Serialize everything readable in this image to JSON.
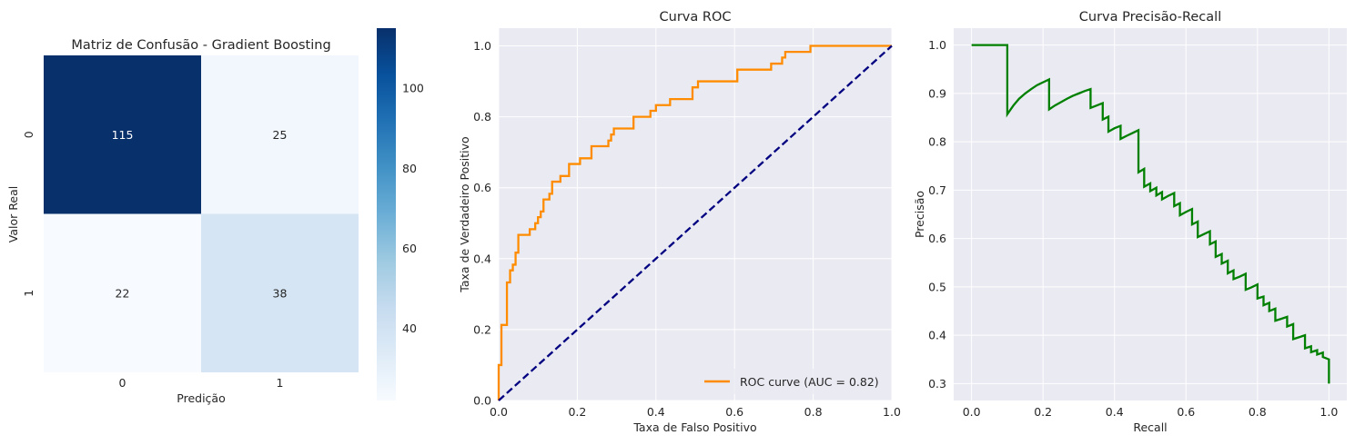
{
  "chart_data": [
    {
      "type": "heatmap",
      "title": "Matriz de Confusão - Gradient Boosting",
      "xlabel": "Predição",
      "ylabel": "Valor Real",
      "x_categories": [
        "0",
        "1"
      ],
      "y_categories": [
        "0",
        "1"
      ],
      "values": [
        [
          115,
          25
        ],
        [
          22,
          38
        ]
      ],
      "colormap": "Blues",
      "colorbar": {
        "min": 22,
        "max": 115,
        "ticks": [
          40,
          60,
          80,
          100
        ]
      }
    },
    {
      "type": "line",
      "title": "Curva ROC",
      "xlabel": "Taxa de Falso Positivo",
      "ylabel": "Taxa de Verdadeiro Positivo",
      "xlim": [
        0.0,
        1.0
      ],
      "ylim": [
        0.0,
        1.05
      ],
      "xticks": [
        "0.0",
        "0.2",
        "0.4",
        "0.6",
        "0.8",
        "1.0"
      ],
      "yticks": [
        "0.0",
        "0.2",
        "0.4",
        "0.6",
        "0.8",
        "1.0"
      ],
      "grid": true,
      "legend": {
        "position": "lower-right"
      },
      "series": [
        {
          "name": "ROC curve (AUC = 0.82)",
          "color": "#ff8c00",
          "style": "solid",
          "points": [
            [
              0,
              0
            ],
            [
              0,
              0.1
            ],
            [
              0.007,
              0.1
            ],
            [
              0.007,
              0.213
            ],
            [
              0.021,
              0.213
            ],
            [
              0.021,
              0.333
            ],
            [
              0.029,
              0.333
            ],
            [
              0.029,
              0.367
            ],
            [
              0.036,
              0.367
            ],
            [
              0.036,
              0.383
            ],
            [
              0.043,
              0.383
            ],
            [
              0.043,
              0.417
            ],
            [
              0.05,
              0.417
            ],
            [
              0.05,
              0.467
            ],
            [
              0.079,
              0.467
            ],
            [
              0.079,
              0.483
            ],
            [
              0.093,
              0.483
            ],
            [
              0.093,
              0.5
            ],
            [
              0.1,
              0.5
            ],
            [
              0.1,
              0.517
            ],
            [
              0.107,
              0.517
            ],
            [
              0.107,
              0.533
            ],
            [
              0.114,
              0.533
            ],
            [
              0.114,
              0.567
            ],
            [
              0.129,
              0.567
            ],
            [
              0.129,
              0.583
            ],
            [
              0.136,
              0.583
            ],
            [
              0.136,
              0.617
            ],
            [
              0.157,
              0.617
            ],
            [
              0.157,
              0.633
            ],
            [
              0.179,
              0.633
            ],
            [
              0.179,
              0.667
            ],
            [
              0.207,
              0.667
            ],
            [
              0.207,
              0.683
            ],
            [
              0.236,
              0.683
            ],
            [
              0.236,
              0.717
            ],
            [
              0.279,
              0.717
            ],
            [
              0.279,
              0.733
            ],
            [
              0.286,
              0.733
            ],
            [
              0.286,
              0.75
            ],
            [
              0.293,
              0.75
            ],
            [
              0.293,
              0.767
            ],
            [
              0.343,
              0.767
            ],
            [
              0.343,
              0.8
            ],
            [
              0.386,
              0.8
            ],
            [
              0.386,
              0.817
            ],
            [
              0.4,
              0.817
            ],
            [
              0.4,
              0.833
            ],
            [
              0.436,
              0.833
            ],
            [
              0.436,
              0.85
            ],
            [
              0.493,
              0.85
            ],
            [
              0.493,
              0.883
            ],
            [
              0.507,
              0.883
            ],
            [
              0.507,
              0.9
            ],
            [
              0.607,
              0.9
            ],
            [
              0.607,
              0.933
            ],
            [
              0.693,
              0.933
            ],
            [
              0.693,
              0.95
            ],
            [
              0.721,
              0.95
            ],
            [
              0.721,
              0.967
            ],
            [
              0.729,
              0.967
            ],
            [
              0.729,
              0.983
            ],
            [
              0.793,
              0.983
            ],
            [
              0.793,
              1.0
            ],
            [
              1.0,
              1.0
            ]
          ]
        },
        {
          "name": "",
          "color": "#000080",
          "style": "dashed",
          "points": [
            [
              0,
              0
            ],
            [
              1,
              1
            ]
          ]
        }
      ]
    },
    {
      "type": "line",
      "title": "Curva Precisão-Recall",
      "xlabel": "Recall",
      "ylabel": "Precisão",
      "xlim": [
        -0.05,
        1.05
      ],
      "ylim": [
        0.265,
        1.035
      ],
      "xticks": [
        "0.0",
        "0.2",
        "0.4",
        "0.6",
        "0.8",
        "1.0"
      ],
      "yticks": [
        "0.3",
        "0.4",
        "0.5",
        "0.6",
        "0.7",
        "0.8",
        "0.9",
        "1.0"
      ],
      "grid": true,
      "series": [
        {
          "name": "",
          "color": "#008000",
          "style": "solid",
          "points": [
            [
              0,
              1.0
            ],
            [
              0.1,
              1.0
            ],
            [
              0.1,
              0.857
            ],
            [
              0.117,
              0.875
            ],
            [
              0.133,
              0.889
            ],
            [
              0.15,
              0.9
            ],
            [
              0.167,
              0.909
            ],
            [
              0.183,
              0.917
            ],
            [
              0.2,
              0.923
            ],
            [
              0.217,
              0.929
            ],
            [
              0.217,
              0.867
            ],
            [
              0.233,
              0.875
            ],
            [
              0.25,
              0.882
            ],
            [
              0.267,
              0.889
            ],
            [
              0.283,
              0.895
            ],
            [
              0.3,
              0.9
            ],
            [
              0.317,
              0.905
            ],
            [
              0.333,
              0.909
            ],
            [
              0.333,
              0.87
            ],
            [
              0.35,
              0.875
            ],
            [
              0.367,
              0.88
            ],
            [
              0.367,
              0.846
            ],
            [
              0.383,
              0.852
            ],
            [
              0.383,
              0.821
            ],
            [
              0.4,
              0.828
            ],
            [
              0.417,
              0.833
            ],
            [
              0.417,
              0.806
            ],
            [
              0.433,
              0.812
            ],
            [
              0.45,
              0.818
            ],
            [
              0.467,
              0.824
            ],
            [
              0.467,
              0.737
            ],
            [
              0.483,
              0.744
            ],
            [
              0.483,
              0.707
            ],
            [
              0.5,
              0.714
            ],
            [
              0.5,
              0.698
            ],
            [
              0.517,
              0.705
            ],
            [
              0.517,
              0.689
            ],
            [
              0.533,
              0.696
            ],
            [
              0.533,
              0.681
            ],
            [
              0.55,
              0.688
            ],
            [
              0.567,
              0.694
            ],
            [
              0.567,
              0.667
            ],
            [
              0.583,
              0.673
            ],
            [
              0.583,
              0.648
            ],
            [
              0.6,
              0.655
            ],
            [
              0.617,
              0.661
            ],
            [
              0.617,
              0.629
            ],
            [
              0.633,
              0.635
            ],
            [
              0.633,
              0.603
            ],
            [
              0.65,
              0.609
            ],
            [
              0.667,
              0.615
            ],
            [
              0.667,
              0.588
            ],
            [
              0.683,
              0.594
            ],
            [
              0.683,
              0.562
            ],
            [
              0.7,
              0.568
            ],
            [
              0.7,
              0.548
            ],
            [
              0.717,
              0.554
            ],
            [
              0.717,
              0.528
            ],
            [
              0.733,
              0.534
            ],
            [
              0.733,
              0.516
            ],
            [
              0.75,
              0.521
            ],
            [
              0.767,
              0.527
            ],
            [
              0.767,
              0.494
            ],
            [
              0.783,
              0.499
            ],
            [
              0.8,
              0.505
            ],
            [
              0.8,
              0.476
            ],
            [
              0.817,
              0.48
            ],
            [
              0.817,
              0.462
            ],
            [
              0.833,
              0.467
            ],
            [
              0.833,
              0.45
            ],
            [
              0.85,
              0.455
            ],
            [
              0.85,
              0.43
            ],
            [
              0.867,
              0.434
            ],
            [
              0.883,
              0.438
            ],
            [
              0.883,
              0.418
            ],
            [
              0.9,
              0.423
            ],
            [
              0.9,
              0.392
            ],
            [
              0.917,
              0.396
            ],
            [
              0.933,
              0.4
            ],
            [
              0.933,
              0.373
            ],
            [
              0.95,
              0.377
            ],
            [
              0.95,
              0.365
            ],
            [
              0.967,
              0.369
            ],
            [
              0.967,
              0.36
            ],
            [
              0.983,
              0.364
            ],
            [
              0.983,
              0.355
            ],
            [
              1.0,
              0.35
            ],
            [
              1.0,
              0.3
            ]
          ]
        }
      ]
    }
  ]
}
